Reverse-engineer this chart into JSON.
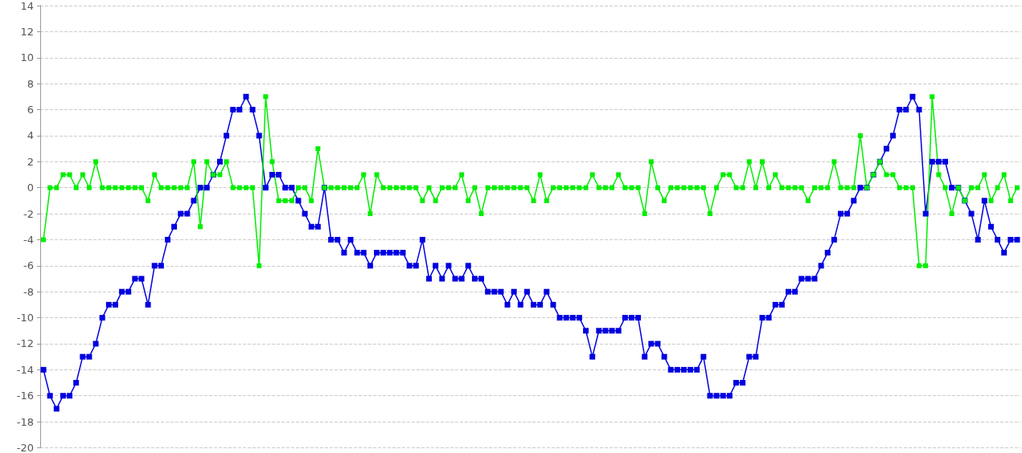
{
  "chart_data": {
    "type": "line",
    "categories": [
      null,
      null,
      null,
      null,
      null,
      null,
      null,
      null,
      null,
      null,
      null,
      null,
      null,
      null,
      null,
      null,
      null,
      null,
      null,
      null,
      null,
      null,
      null,
      null,
      null,
      null,
      null,
      null,
      null,
      null,
      null,
      null,
      null,
      null,
      null,
      null,
      null,
      null,
      null,
      null,
      null,
      null,
      null,
      null,
      null,
      null,
      null,
      null,
      null,
      null,
      null,
      null,
      null,
      null,
      null,
      null,
      null,
      null,
      null,
      null,
      null,
      null,
      null,
      null,
      null,
      null,
      null,
      null,
      null,
      null,
      null,
      null,
      null,
      null,
      null,
      null,
      null,
      null,
      null,
      null,
      null,
      null,
      null,
      null,
      null,
      null,
      null,
      null,
      null,
      null,
      null,
      null,
      null,
      null,
      null,
      null,
      null,
      null,
      null,
      null,
      null,
      null,
      null,
      null,
      null,
      null,
      null,
      null,
      null,
      null,
      null,
      null,
      null,
      null,
      null,
      null,
      null,
      null,
      null,
      null,
      null,
      null,
      null,
      null,
      null,
      null,
      null,
      null,
      null,
      null,
      null,
      null,
      null,
      null,
      null,
      null,
      null,
      null,
      null,
      null,
      null,
      null,
      null,
      null,
      null,
      null,
      null,
      null,
      null,
      null
    ],
    "series": [
      {
        "color": "#0000e0",
        "values": [
          -14,
          -16,
          -17,
          -16,
          -16,
          -15,
          -13,
          -13,
          -12,
          -10,
          -9,
          -9,
          -8,
          -8,
          -7,
          -7,
          -9,
          -6,
          -6,
          -4,
          -3,
          -2,
          -2,
          -1,
          0,
          0,
          1,
          2,
          4,
          6,
          6,
          7,
          6,
          4,
          0,
          1,
          1,
          0,
          0,
          -1,
          -2,
          -3,
          -3,
          0,
          -4,
          -4,
          -5,
          -4,
          -5,
          -5,
          -6,
          -5,
          -5,
          -5,
          -5,
          -5,
          -6,
          -6,
          -4,
          -7,
          -6,
          -7,
          -6,
          -7,
          -7,
          -6,
          -7,
          -7,
          -8,
          -8,
          -8,
          -9,
          -8,
          -9,
          -8,
          -9,
          -9,
          -8,
          -9,
          -10,
          -10,
          -10,
          -10,
          -11,
          -13,
          -11,
          -11,
          -11,
          -11,
          -10,
          -10,
          -10,
          -13,
          -12,
          -12,
          -13,
          -14,
          -14,
          -14,
          -14,
          -14,
          -13,
          -16,
          -16,
          -16,
          -16,
          -15,
          -15,
          -13,
          -13,
          -10,
          -10,
          -9,
          -9,
          -8,
          -8,
          -7,
          -7,
          -7,
          -6,
          -5,
          -4,
          -2,
          -2,
          -1,
          0,
          0,
          1,
          2,
          3,
          4,
          6,
          6,
          7,
          6,
          -2,
          2,
          2,
          2,
          0,
          0,
          -1,
          -2,
          -4,
          -1,
          -3,
          -4,
          -5,
          -4,
          -4
        ]
      },
      {
        "color": "#00ee00",
        "values": [
          -4,
          0,
          0,
          1,
          1,
          0,
          1,
          0,
          2,
          0,
          0,
          0,
          0,
          0,
          0,
          0,
          -1,
          1,
          0,
          0,
          0,
          0,
          0,
          2,
          -3,
          2,
          1,
          1,
          2,
          0,
          0,
          0,
          0,
          -6,
          7,
          2,
          -1,
          -1,
          -1,
          0,
          0,
          -1,
          3,
          0,
          0,
          0,
          0,
          0,
          0,
          1,
          -2,
          1,
          0,
          0,
          0,
          0,
          0,
          0,
          -1,
          0,
          -1,
          0,
          0,
          0,
          1,
          -1,
          0,
          -2,
          0,
          0,
          0,
          0,
          0,
          0,
          0,
          -1,
          1,
          -1,
          0,
          0,
          0,
          0,
          0,
          0,
          1,
          0,
          0,
          0,
          1,
          0,
          0,
          0,
          -2,
          2,
          0,
          -1,
          0,
          0,
          0,
          0,
          0,
          0,
          -2,
          0,
          1,
          1,
          0,
          0,
          2,
          0,
          2,
          0,
          1,
          0,
          0,
          0,
          0,
          -1,
          0,
          0,
          0,
          2,
          0,
          0,
          0,
          4,
          0,
          1,
          2,
          1,
          1,
          0,
          0,
          0,
          -6,
          -6,
          7,
          1,
          0,
          -2,
          0,
          -1,
          0,
          0,
          1,
          -1,
          0,
          1,
          -1,
          0
        ]
      }
    ],
    "ylim": [
      -20,
      14
    ],
    "yticks": [
      -20,
      -18,
      -16,
      -14,
      -12,
      -10,
      -8,
      -6,
      -4,
      -2,
      0,
      2,
      4,
      6,
      8,
      10,
      12,
      14
    ],
    "grid": "y",
    "tick_labels": "y",
    "marker": "square",
    "line_style": "solid"
  }
}
